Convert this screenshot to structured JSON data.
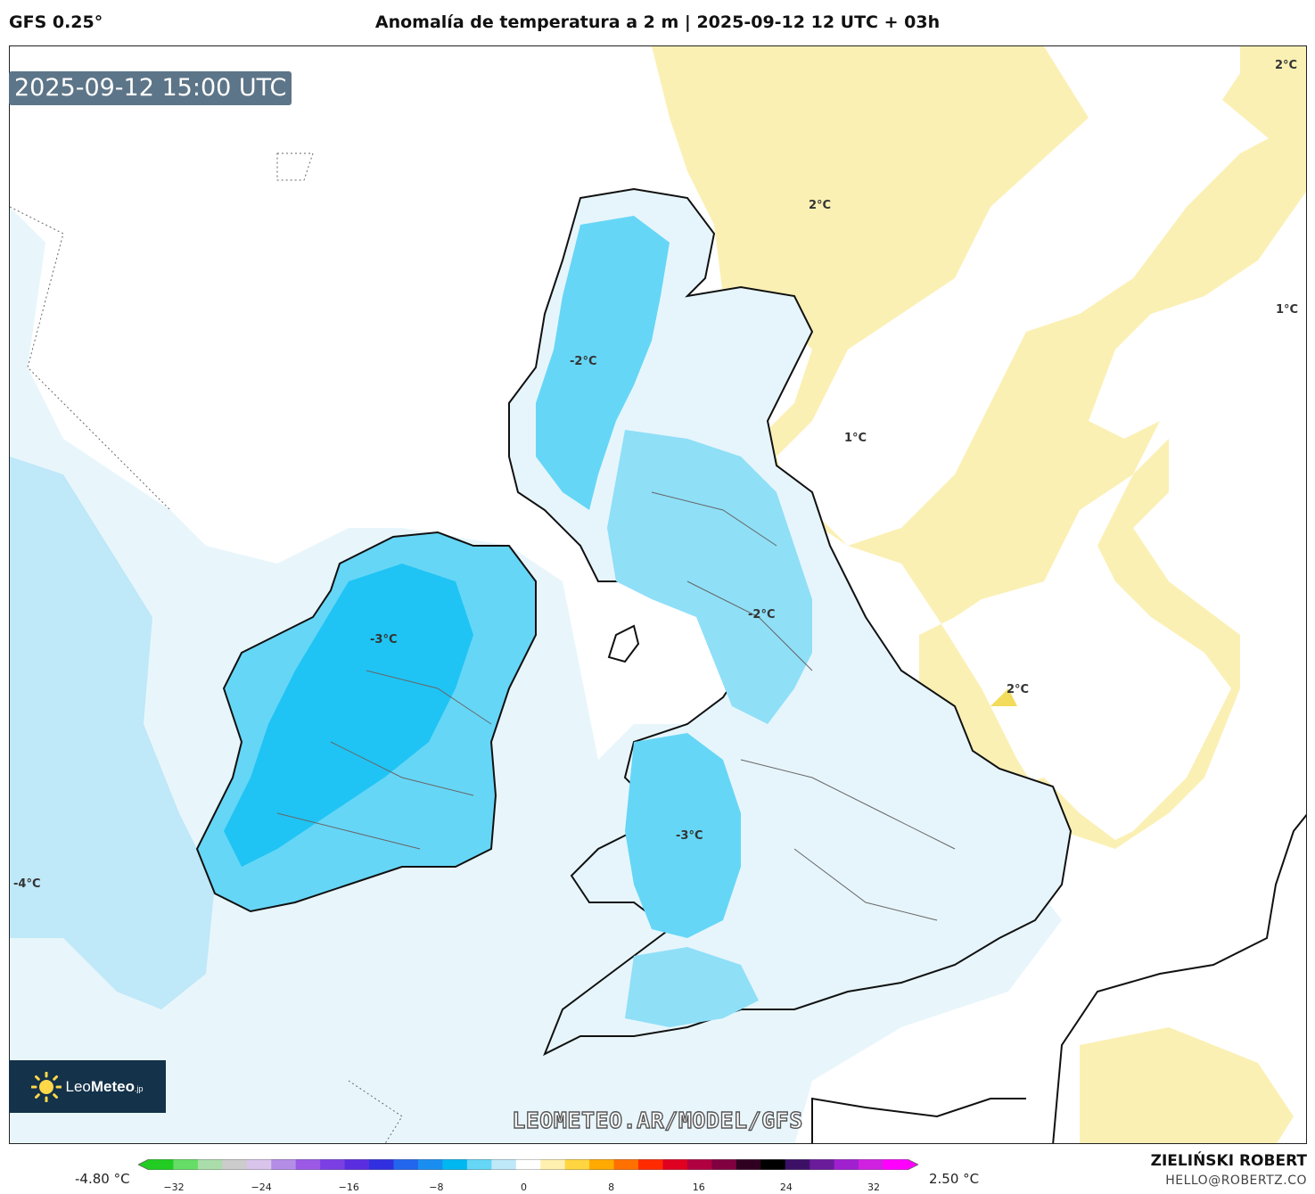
{
  "header": {
    "model": "GFS 0.25°",
    "title": "Anomalía de temperatura a 2 m | 2025-09-12 12 UTC + 03h"
  },
  "badge": {
    "valid_time": "2025-09-12 15:00 UTC"
  },
  "logo": {
    "text_a": "Leo",
    "text_b": "Meteo",
    "text_c": ".jp"
  },
  "watermark": "LEOMETEO.AR/MODEL/GFS",
  "contour_labels": [
    {
      "text": "2°C"
    },
    {
      "text": "2°C"
    },
    {
      "text": "1°C"
    },
    {
      "text": "-2°C"
    },
    {
      "text": "1°C"
    },
    {
      "text": "-3°C"
    },
    {
      "text": "-2°C"
    },
    {
      "text": "2°C"
    },
    {
      "text": "-3°C"
    },
    {
      "text": "-4°C"
    }
  ],
  "colorbar": {
    "min_label": "-4.80 °C",
    "max_label": "2.50 °C",
    "ticks": [
      "−32",
      "−24",
      "−16",
      "−8",
      "0",
      "8",
      "16",
      "24",
      "32"
    ],
    "colors": [
      "#22cc22",
      "#66dd66",
      "#aaddaa",
      "#cccccc",
      "#d9c4ec",
      "#b48ee6",
      "#9b59e6",
      "#7b3fe4",
      "#5a2de0",
      "#3030e0",
      "#2266ee",
      "#1a8ef0",
      "#00b8f0",
      "#66d6f6",
      "#bfe8f8",
      "#ffffff",
      "#fff0b0",
      "#ffd540",
      "#ffaa00",
      "#ff7000",
      "#ff2a00",
      "#e00020",
      "#b00040",
      "#800040",
      "#300020",
      "#000000",
      "#3c1066",
      "#6a1b9a",
      "#a020d0",
      "#d020e0",
      "#ff00ff"
    ]
  },
  "credits": {
    "author": "ZIELIŃSKI ROBERT",
    "email": "HELLO@ROBERTZ.CO"
  }
}
